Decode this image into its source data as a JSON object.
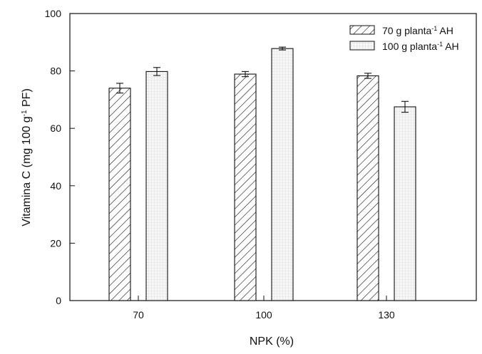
{
  "chart_data": {
    "type": "bar",
    "title": "",
    "xlabel": "NPK (%)",
    "ylabel": {
      "prefix": "Vitamina C (mg 100 g",
      "sup": "-1",
      "suffix": " PF)"
    },
    "categories": [
      "70",
      "100",
      "130"
    ],
    "ylim": [
      0,
      100
    ],
    "yticks": [
      "0",
      "20",
      "40",
      "60",
      "80",
      "100"
    ],
    "grid": false,
    "legend_position": "top-right",
    "series": [
      {
        "name": {
          "prefix": "70 g planta",
          "sup": "-1",
          "suffix": " AH"
        },
        "pattern": "diagonal-hatch",
        "values": [
          74.0,
          78.9,
          78.3
        ],
        "errors": [
          1.7,
          0.9,
          0.9
        ]
      },
      {
        "name": {
          "prefix": "100 g planta",
          "sup": "-1",
          "suffix": " AH"
        },
        "pattern": "fine-grid",
        "values": [
          79.8,
          87.8,
          67.5
        ],
        "errors": [
          1.4,
          0.5,
          1.9
        ]
      }
    ]
  }
}
